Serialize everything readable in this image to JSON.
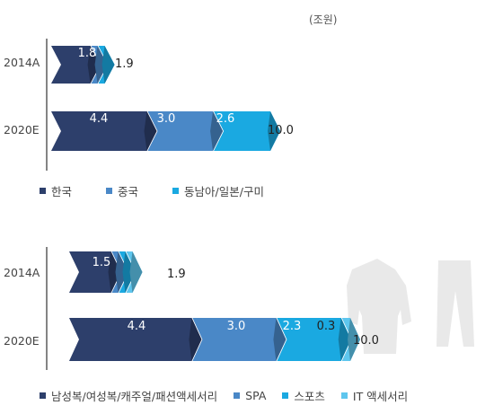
{
  "unit": "(조원)",
  "colors": {
    "navy": "#2d3f6b",
    "blue": "#4a88c7",
    "cyan": "#1aa9e1",
    "light": "#5ec6ee"
  },
  "chart_data": [
    {
      "type": "bar",
      "orientation": "horizontal",
      "stacked": true,
      "categories": [
        "2014A",
        "2020E"
      ],
      "totals": [
        "1.9",
        "10.0"
      ],
      "series": [
        {
          "name": "한국",
          "color": "#2d3f6b",
          "values": [
            1.8,
            4.4
          ],
          "labels": [
            "1.8",
            "4.4"
          ]
        },
        {
          "name": "중국",
          "color": "#4a88c7",
          "values": [
            0.05,
            3.0
          ],
          "labels": [
            "",
            "3.0"
          ]
        },
        {
          "name": "동남아/일본/구미",
          "color": "#1aa9e1",
          "values": [
            0.05,
            2.6
          ],
          "labels": [
            "",
            "2.6"
          ]
        }
      ]
    },
    {
      "type": "bar",
      "orientation": "horizontal",
      "stacked": true,
      "categories": [
        "2014A",
        "2020E"
      ],
      "totals": [
        "1.9",
        "10.0"
      ],
      "series": [
        {
          "name": "남성복/여성복/캐주얼/패션액세서리",
          "color": "#2d3f6b",
          "values": [
            1.5,
            4.4
          ],
          "labels": [
            "1.5",
            "4.4"
          ]
        },
        {
          "name": "SPA",
          "color": "#4a88c7",
          "values": [
            0.12,
            3.0
          ],
          "labels": [
            "",
            "3.0"
          ]
        },
        {
          "name": "스포츠",
          "color": "#1aa9e1",
          "values": [
            0.2,
            2.3
          ],
          "labels": [
            "",
            "2.3"
          ]
        },
        {
          "name": "IT 액세서리",
          "color": "#5ec6ee",
          "values": [
            0.08,
            0.3
          ],
          "labels": [
            "",
            "0.3"
          ]
        }
      ]
    }
  ]
}
